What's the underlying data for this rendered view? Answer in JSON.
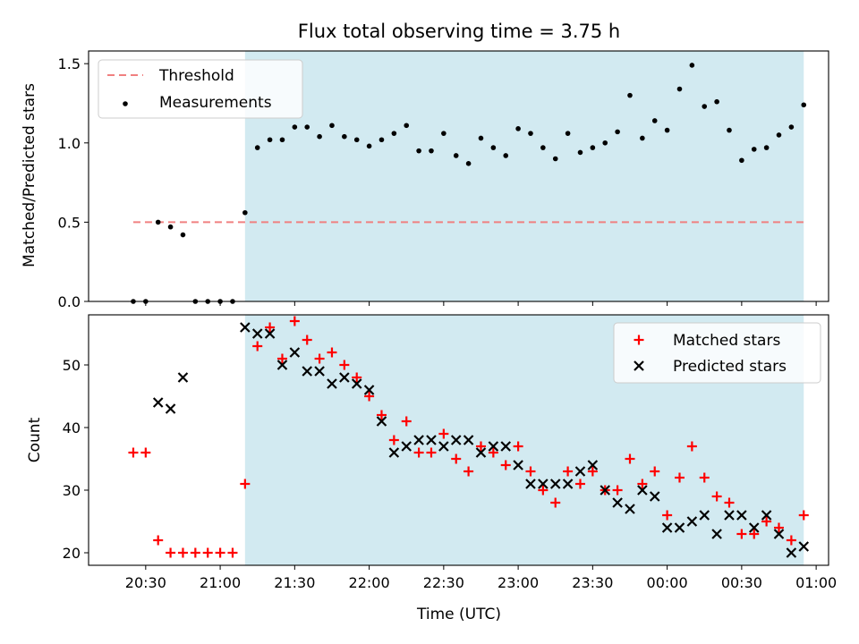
{
  "title": "Flux total observing time = 3.75 h",
  "colors": {
    "threshold": "#f08080",
    "shade": "#add8e6",
    "matched": "#ff0000",
    "predicted": "#000000",
    "measurement": "#000000"
  },
  "chart_data": [
    {
      "type": "scatter",
      "panel": "top",
      "ylabel": "Matched/Predicted stars",
      "ylim": [
        0,
        1.58
      ],
      "yticks": [
        0.0,
        0.5,
        1.0,
        1.5
      ],
      "ytick_labels": [
        "0.0",
        "0.5",
        "1.0",
        "1.5"
      ],
      "shaded_x_range": [
        "21:10",
        "00:55"
      ],
      "legend": {
        "placement": "upper-left",
        "entries": [
          "Threshold",
          "Measurements"
        ]
      },
      "threshold": {
        "name": "Threshold",
        "value": 0.5,
        "x_range": [
          "20:25",
          "00:55"
        ],
        "style": "dashed"
      },
      "series": [
        {
          "name": "Measurements",
          "points": [
            [
              "20:25",
              0
            ],
            [
              "20:30",
              0
            ],
            [
              "20:35",
              0.5
            ],
            [
              "20:40",
              0.47
            ],
            [
              "20:45",
              0.42
            ],
            [
              "20:50",
              0
            ],
            [
              "20:55",
              0
            ],
            [
              "21:00",
              0
            ],
            [
              "21:05",
              0
            ],
            [
              "21:10",
              0.56
            ],
            [
              "21:15",
              0.97
            ],
            [
              "21:20",
              1.02
            ],
            [
              "21:25",
              1.02
            ],
            [
              "21:30",
              1.1
            ],
            [
              "21:35",
              1.1
            ],
            [
              "21:40",
              1.04
            ],
            [
              "21:45",
              1.11
            ],
            [
              "21:50",
              1.04
            ],
            [
              "21:55",
              1.02
            ],
            [
              "22:00",
              0.98
            ],
            [
              "22:05",
              1.02
            ],
            [
              "22:10",
              1.06
            ],
            [
              "22:15",
              1.11
            ],
            [
              "22:20",
              0.95
            ],
            [
              "22:25",
              0.95
            ],
            [
              "22:30",
              1.06
            ],
            [
              "22:35",
              0.92
            ],
            [
              "22:40",
              0.87
            ],
            [
              "22:45",
              1.03
            ],
            [
              "22:50",
              0.97
            ],
            [
              "22:55",
              0.92
            ],
            [
              "23:00",
              1.09
            ],
            [
              "23:05",
              1.06
            ],
            [
              "23:10",
              0.97
            ],
            [
              "23:15",
              0.9
            ],
            [
              "23:20",
              1.06
            ],
            [
              "23:25",
              0.94
            ],
            [
              "23:30",
              0.97
            ],
            [
              "23:35",
              1.0
            ],
            [
              "23:40",
              1.07
            ],
            [
              "23:45",
              1.3
            ],
            [
              "23:50",
              1.03
            ],
            [
              "23:55",
              1.14
            ],
            [
              "00:00",
              1.08
            ],
            [
              "00:05",
              1.34
            ],
            [
              "00:10",
              1.49
            ],
            [
              "00:15",
              1.23
            ],
            [
              "00:20",
              1.26
            ],
            [
              "00:25",
              1.08
            ],
            [
              "00:30",
              0.89
            ],
            [
              "00:35",
              0.96
            ],
            [
              "00:40",
              0.97
            ],
            [
              "00:45",
              1.05
            ],
            [
              "00:50",
              1.1
            ],
            [
              "00:55",
              1.24
            ]
          ]
        }
      ]
    },
    {
      "type": "scatter",
      "panel": "bottom",
      "xlabel": "Time (UTC)",
      "ylabel": "Count",
      "ylim": [
        18,
        58
      ],
      "yticks": [
        20,
        30,
        40,
        50
      ],
      "xticks": [
        "20:30",
        "21:00",
        "21:30",
        "22:00",
        "22:30",
        "23:00",
        "23:30",
        "00:00",
        "00:30",
        "01:00"
      ],
      "shaded_x_range": [
        "21:10",
        "00:55"
      ],
      "legend": {
        "placement": "upper-right",
        "entries": [
          "Matched stars",
          "Predicted stars"
        ]
      },
      "series": [
        {
          "name": "Matched stars",
          "marker": "+",
          "points": [
            [
              "20:25",
              36
            ],
            [
              "20:30",
              36
            ],
            [
              "20:35",
              22
            ],
            [
              "20:40",
              20
            ],
            [
              "20:45",
              20
            ],
            [
              "20:50",
              20
            ],
            [
              "20:55",
              20
            ],
            [
              "21:00",
              20
            ],
            [
              "21:05",
              20
            ],
            [
              "21:10",
              31
            ],
            [
              "21:15",
              53
            ],
            [
              "21:20",
              56
            ],
            [
              "21:25",
              51
            ],
            [
              "21:30",
              57
            ],
            [
              "21:35",
              54
            ],
            [
              "21:40",
              51
            ],
            [
              "21:45",
              52
            ],
            [
              "21:50",
              50
            ],
            [
              "21:55",
              48
            ],
            [
              "22:00",
              45
            ],
            [
              "22:05",
              42
            ],
            [
              "22:10",
              38
            ],
            [
              "22:15",
              41
            ],
            [
              "22:20",
              36
            ],
            [
              "22:25",
              36
            ],
            [
              "22:30",
              39
            ],
            [
              "22:35",
              35
            ],
            [
              "22:40",
              33
            ],
            [
              "22:45",
              37
            ],
            [
              "22:50",
              36
            ],
            [
              "22:55",
              34
            ],
            [
              "23:00",
              37
            ],
            [
              "23:05",
              33
            ],
            [
              "23:10",
              30
            ],
            [
              "23:15",
              28
            ],
            [
              "23:20",
              33
            ],
            [
              "23:25",
              31
            ],
            [
              "23:30",
              33
            ],
            [
              "23:35",
              30
            ],
            [
              "23:40",
              30
            ],
            [
              "23:45",
              35
            ],
            [
              "23:50",
              31
            ],
            [
              "23:55",
              33
            ],
            [
              "00:00",
              26
            ],
            [
              "00:05",
              32
            ],
            [
              "00:10",
              37
            ],
            [
              "00:15",
              32
            ],
            [
              "00:20",
              29
            ],
            [
              "00:25",
              28
            ],
            [
              "00:30",
              23
            ],
            [
              "00:35",
              23
            ],
            [
              "00:40",
              25
            ],
            [
              "00:45",
              24
            ],
            [
              "00:50",
              22
            ],
            [
              "00:55",
              26
            ]
          ]
        },
        {
          "name": "Predicted stars",
          "marker": "x",
          "points": [
            [
              "20:35",
              44
            ],
            [
              "20:40",
              43
            ],
            [
              "20:45",
              48
            ],
            [
              "21:10",
              56
            ],
            [
              "21:15",
              55
            ],
            [
              "21:20",
              55
            ],
            [
              "21:25",
              50
            ],
            [
              "21:30",
              52
            ],
            [
              "21:35",
              49
            ],
            [
              "21:40",
              49
            ],
            [
              "21:45",
              47
            ],
            [
              "21:50",
              48
            ],
            [
              "21:55",
              47
            ],
            [
              "22:00",
              46
            ],
            [
              "22:05",
              41
            ],
            [
              "22:10",
              36
            ],
            [
              "22:15",
              37
            ],
            [
              "22:20",
              38
            ],
            [
              "22:25",
              38
            ],
            [
              "22:30",
              37
            ],
            [
              "22:35",
              38
            ],
            [
              "22:40",
              38
            ],
            [
              "22:45",
              36
            ],
            [
              "22:50",
              37
            ],
            [
              "22:55",
              37
            ],
            [
              "23:00",
              34
            ],
            [
              "23:05",
              31
            ],
            [
              "23:10",
              31
            ],
            [
              "23:15",
              31
            ],
            [
              "23:20",
              31
            ],
            [
              "23:25",
              33
            ],
            [
              "23:30",
              34
            ],
            [
              "23:35",
              30
            ],
            [
              "23:40",
              28
            ],
            [
              "23:45",
              27
            ],
            [
              "23:50",
              30
            ],
            [
              "23:55",
              29
            ],
            [
              "00:00",
              24
            ],
            [
              "00:05",
              24
            ],
            [
              "00:10",
              25
            ],
            [
              "00:15",
              26
            ],
            [
              "00:20",
              23
            ],
            [
              "00:25",
              26
            ],
            [
              "00:30",
              26
            ],
            [
              "00:35",
              24
            ],
            [
              "00:40",
              26
            ],
            [
              "00:45",
              23
            ],
            [
              "00:50",
              20
            ],
            [
              "00:55",
              21
            ]
          ]
        }
      ]
    }
  ]
}
